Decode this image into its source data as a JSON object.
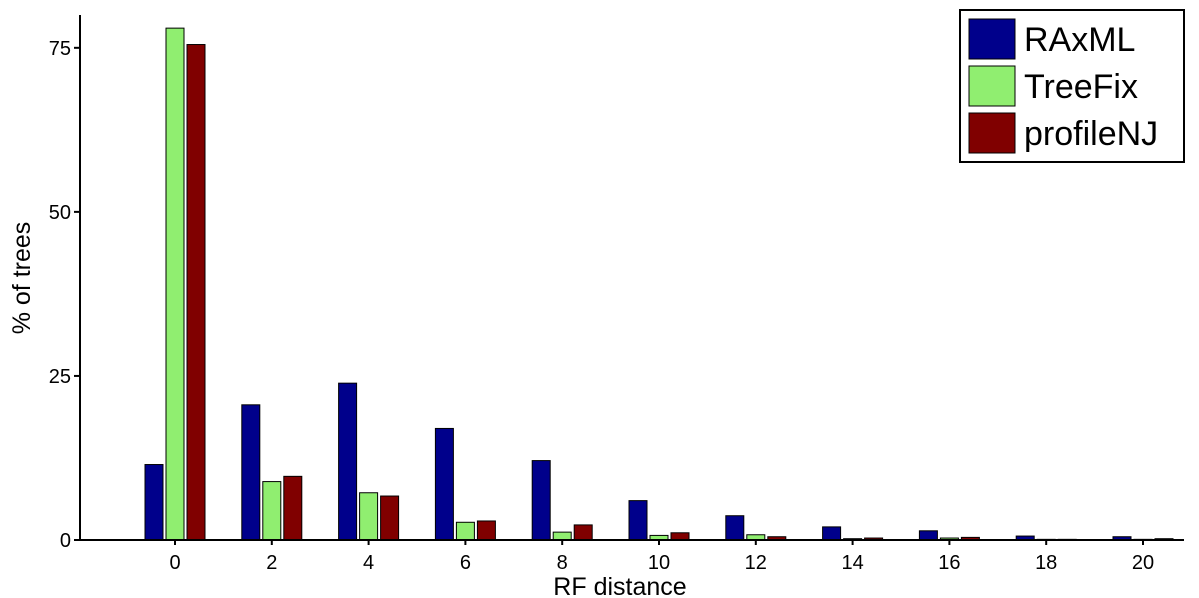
{
  "chart_data": {
    "type": "bar",
    "xlabel": "RF distance",
    "ylabel": "% of trees",
    "x": [
      0,
      2,
      4,
      6,
      8,
      10,
      12,
      14,
      16,
      18,
      20
    ],
    "x_ticks": [
      "0",
      "2",
      "4",
      "6",
      "8",
      "10",
      "12",
      "14",
      "16",
      "18",
      "20"
    ],
    "y_ticks": [
      0,
      25,
      50,
      75
    ],
    "y_tick_labels": [
      "0",
      "25",
      "50",
      "75"
    ],
    "ylim": [
      0,
      80
    ],
    "grid": false,
    "legend_position": "top-right",
    "series": [
      {
        "name": "RAxML",
        "color": "#00008b",
        "values": [
          11.5,
          20.6,
          23.9,
          17.0,
          12.1,
          6.0,
          3.7,
          2.0,
          1.4,
          0.6,
          0.5
        ]
      },
      {
        "name": "TreeFix",
        "color": "#90ee70",
        "values": [
          78.0,
          8.9,
          7.2,
          2.7,
          1.2,
          0.7,
          0.8,
          0.2,
          0.3,
          0.1,
          0.1
        ]
      },
      {
        "name": "profileNJ",
        "color": "#800000",
        "values": [
          75.5,
          9.7,
          6.7,
          2.9,
          2.3,
          1.1,
          0.5,
          0.3,
          0.4,
          0.1,
          0.2
        ]
      }
    ]
  }
}
